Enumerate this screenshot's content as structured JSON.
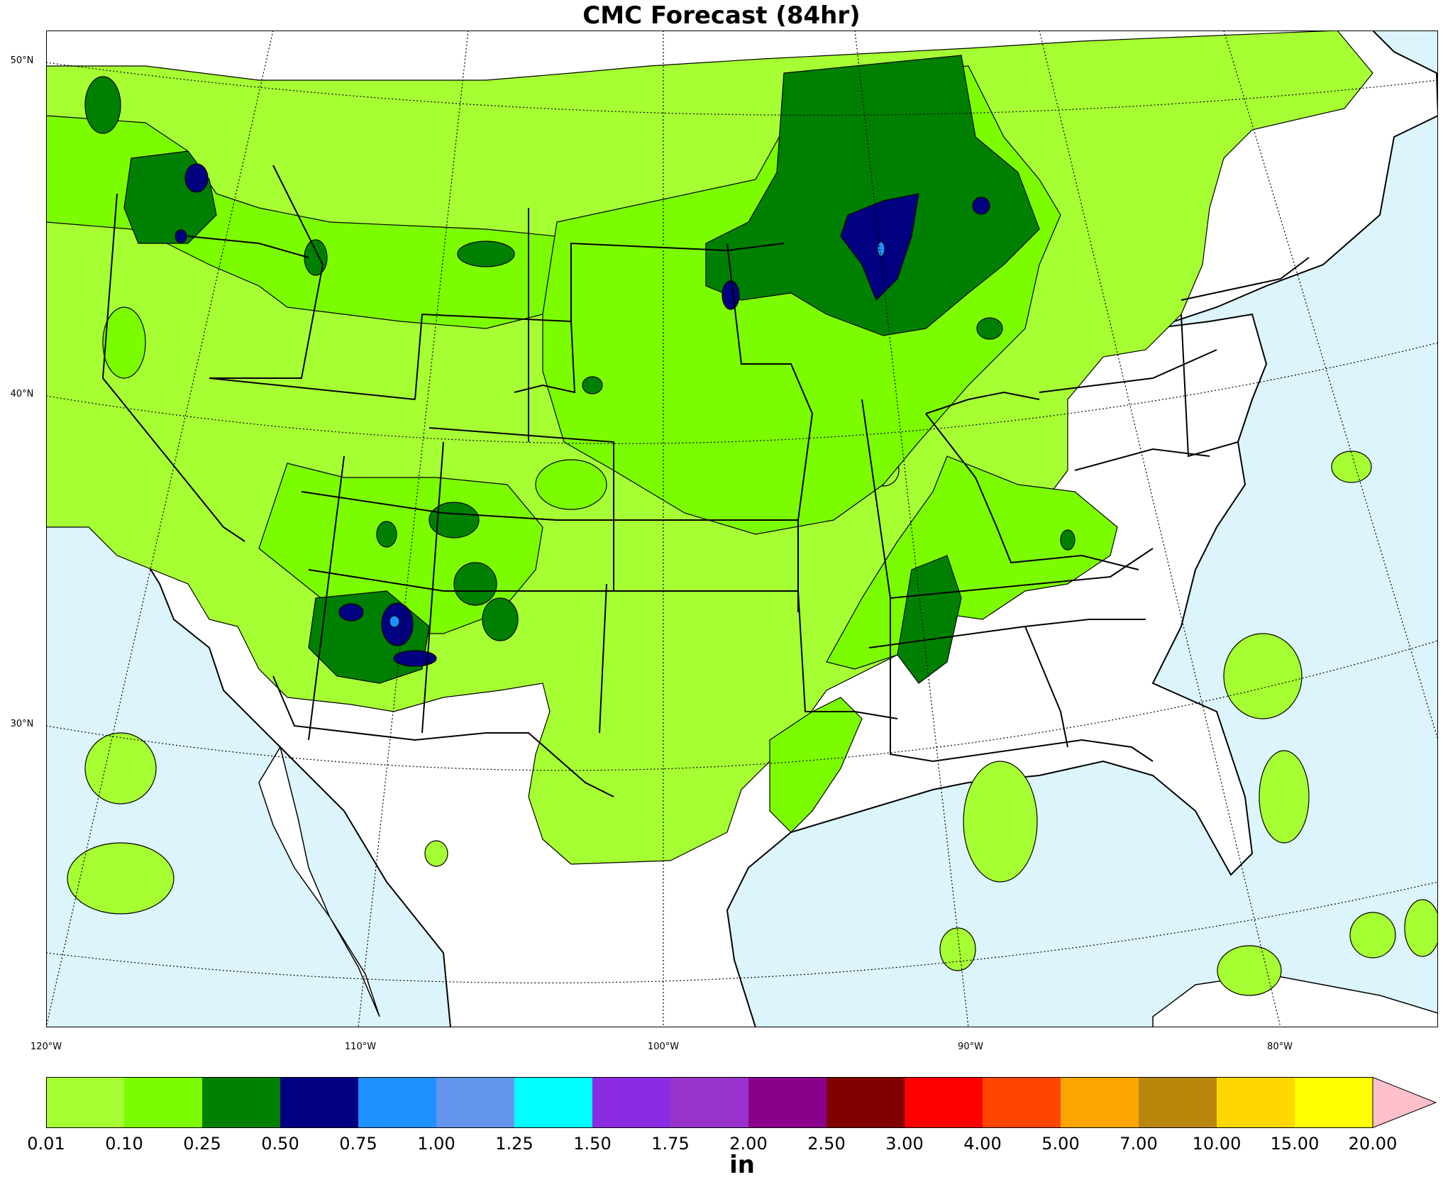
{
  "title": "CMC Forecast (84hr)",
  "colors": {
    "ocean": "#dcf4fc",
    "land": "#ffffff",
    "level_0_01": "#a6ff33",
    "level_0_10": "#7cfc00",
    "level_0_25": "#008000",
    "level_0_50": "#000080",
    "level_0_75": "#1e90ff"
  },
  "lat_labels": [
    "50°N",
    "40°N",
    "30°N"
  ],
  "lon_labels": [
    "120°W",
    "110°W",
    "100°W",
    "90°W",
    "80°W"
  ],
  "colorbar": {
    "unit": "in",
    "ticks": [
      "0.01",
      "0.10",
      "0.25",
      "0.50",
      "0.75",
      "1.00",
      "1.25",
      "1.50",
      "1.75",
      "2.00",
      "2.50",
      "3.00",
      "4.00",
      "5.00",
      "7.00",
      "10.00",
      "15.00",
      "20.00"
    ],
    "colors": [
      "#a6ff33",
      "#7cfc00",
      "#008000",
      "#000080",
      "#1e90ff",
      "#6495ed",
      "#00ffff",
      "#8a2be2",
      "#9932cc",
      "#8b008b",
      "#800000",
      "#ff0000",
      "#ff4500",
      "#ffa500",
      "#b8860b",
      "#ffd700",
      "#ffff00"
    ],
    "extend_color": "#ffc0cb"
  }
}
